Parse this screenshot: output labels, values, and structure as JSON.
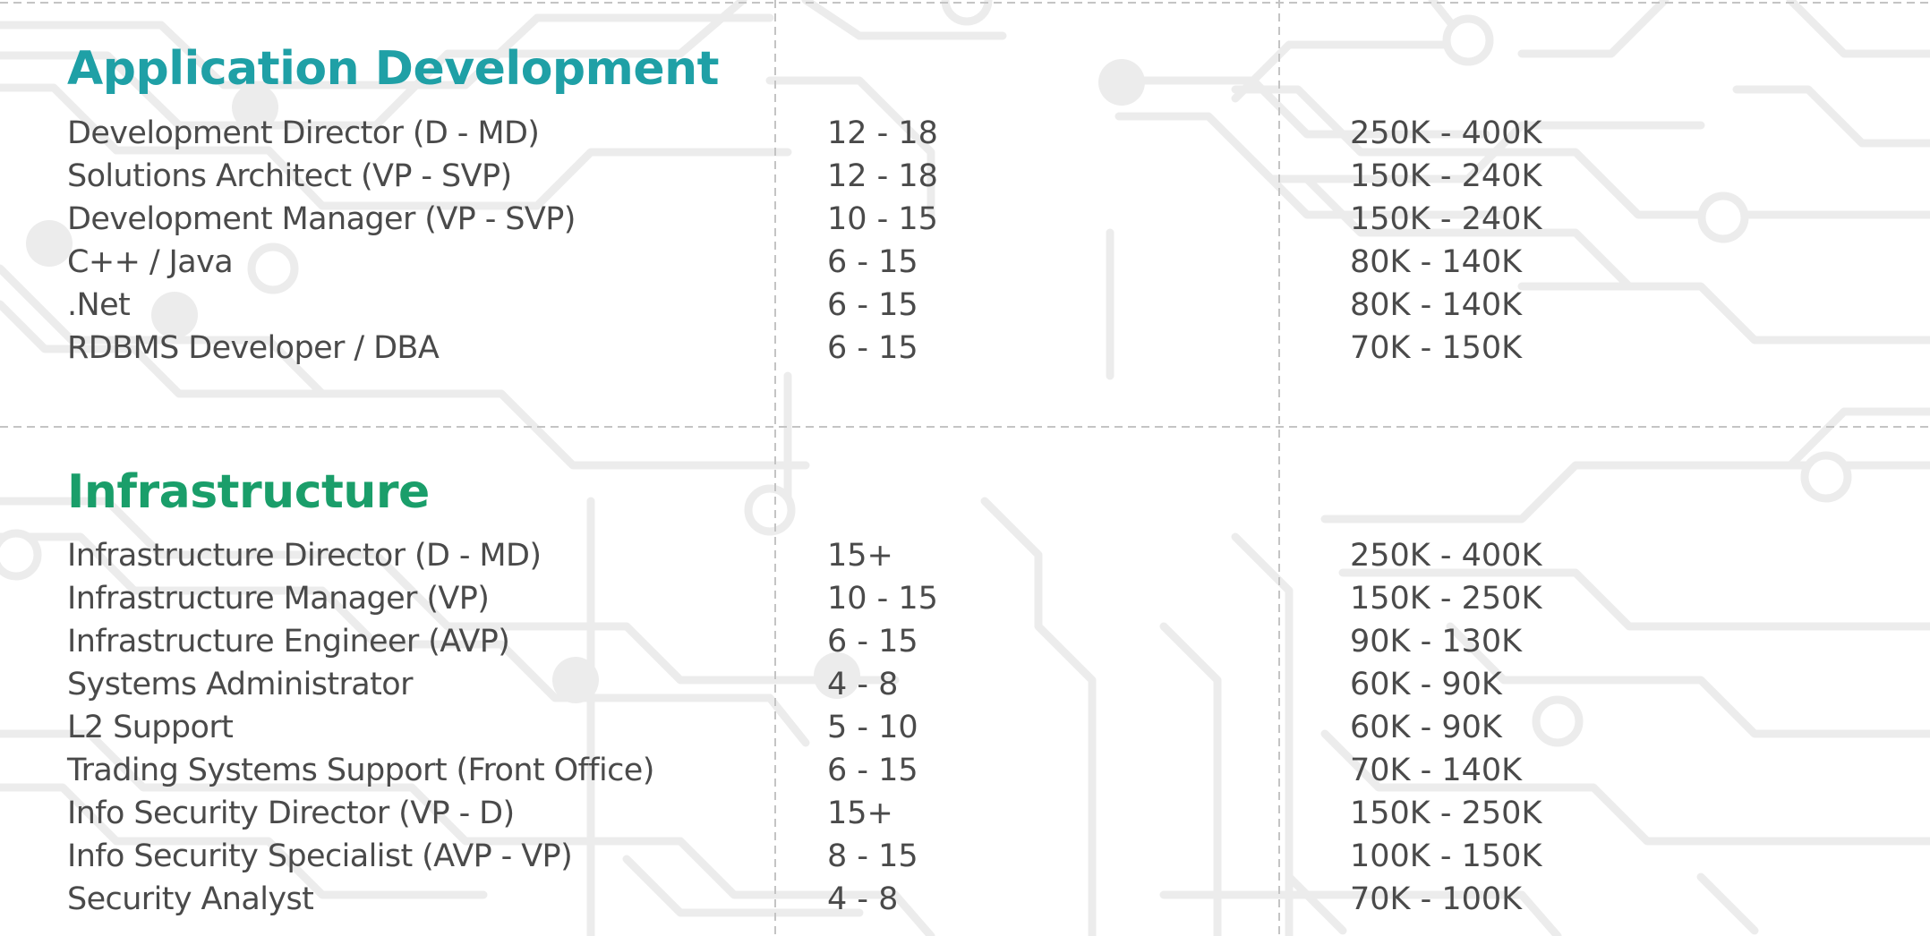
{
  "theme": {
    "app_title_color": "#1fa0a6",
    "infra_title_color": "#1a9e6a",
    "text_color": "#4a4a4a",
    "circuit_color": "#ececec",
    "divider_color": "#c4c4c4"
  },
  "sections": [
    {
      "title": "Application Development",
      "rows": [
        {
          "role": "Development Director (D - MD)",
          "experience": "12 - 18",
          "salary": "250K - 400K"
        },
        {
          "role": "Solutions Architect (VP - SVP)",
          "experience": "12 - 18",
          "salary": "150K - 240K"
        },
        {
          "role": "Development Manager (VP - SVP)",
          "experience": "10 - 15",
          "salary": "150K - 240K"
        },
        {
          "role": "C++ / Java",
          "experience": "6 - 15",
          "salary": "80K - 140K"
        },
        {
          "role": ".Net",
          "experience": "6 - 15",
          "salary": "80K - 140K"
        },
        {
          "role": "RDBMS Developer / DBA",
          "experience": "6 - 15",
          "salary": "70K - 150K"
        }
      ]
    },
    {
      "title": "Infrastructure",
      "rows": [
        {
          "role": "Infrastructure Director (D - MD)",
          "experience": "15+",
          "salary": "250K - 400K"
        },
        {
          "role": "Infrastructure Manager (VP)",
          "experience": "10 - 15",
          "salary": "150K - 250K"
        },
        {
          "role": "Infrastructure Engineer (AVP)",
          "experience": "6 - 15",
          "salary": "90K - 130K"
        },
        {
          "role": "Systems Administrator",
          "experience": "4 - 8",
          "salary": "60K - 90K"
        },
        {
          "role": "L2 Support",
          "experience": "5 - 10",
          "salary": "60K - 90K"
        },
        {
          "role": "Trading Systems Support (Front Office)",
          "experience": "6 - 15",
          "salary": "70K - 140K"
        },
        {
          "role": "Info Security Director (VP - D)",
          "experience": "15+",
          "salary": "150K - 250K"
        },
        {
          "role": "Info Security Specialist (AVP - VP)",
          "experience": "8 - 15",
          "salary": "100K - 150K"
        },
        {
          "role": "Security Analyst",
          "experience": "4 - 8",
          "salary": "70K - 100K"
        }
      ]
    }
  ]
}
